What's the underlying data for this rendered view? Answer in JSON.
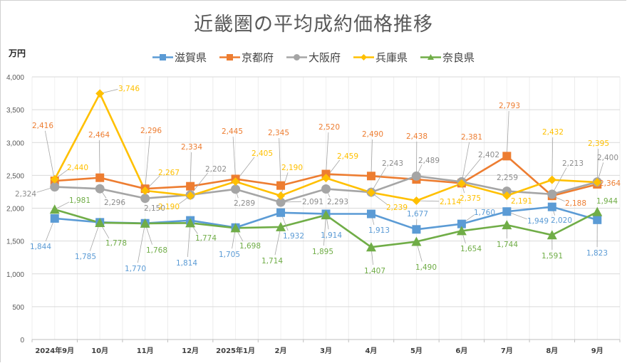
{
  "chart_data": {
    "type": "line",
    "title": "近畿圏の平均成約価格推移",
    "ylabel": "万円",
    "xlabel": "",
    "ylim": [
      0,
      4000
    ],
    "yticks": [
      "0",
      "500",
      "1,000",
      "1,500",
      "2,000",
      "2,500",
      "3,000",
      "3,500",
      "4,000"
    ],
    "ytick_values": [
      0,
      500,
      1000,
      1500,
      2000,
      2500,
      3000,
      3500,
      4000
    ],
    "grid": true,
    "legend_position": "top",
    "categories": [
      "2024年9月",
      "10月",
      "11月",
      "12月",
      "2025年1月",
      "2月",
      "3月",
      "4月",
      "5月",
      "6月",
      "7月",
      "8月",
      "9月"
    ],
    "series": [
      {
        "name": "滋賀県",
        "color": "#5B9BD5",
        "marker": "square",
        "values": [
          1844,
          1785,
          1770,
          1814,
          1705,
          1932,
          1914,
          1913,
          1677,
          1760,
          1949,
          2020,
          1823
        ],
        "labels": [
          "1,844",
          "1,785",
          "1,770",
          "1,814",
          "1,705",
          "1,932",
          "1,914",
          "1,913",
          "1,677",
          "1,760",
          "1,949",
          "2,020",
          "1,823"
        ]
      },
      {
        "name": "京都府",
        "color": "#ED7D31",
        "marker": "square",
        "values": [
          2416,
          2464,
          2296,
          2334,
          2445,
          2345,
          2520,
          2490,
          2438,
          2381,
          2793,
          2188,
          2364
        ],
        "labels": [
          "2,416",
          "2,464",
          "2,296",
          "2,334",
          "2,445",
          "2,345",
          "2,520",
          "2,490",
          "2,438",
          "2,381",
          "2,793",
          "2,188",
          "2,364"
        ]
      },
      {
        "name": "大阪府",
        "color": "#A5A5A5",
        "marker": "circle",
        "values": [
          2324,
          2296,
          2150,
          2202,
          2289,
          2091,
          2293,
          2243,
          2489,
          2402,
          2259,
          2213,
          2400
        ],
        "labels": [
          "2,324",
          "2,296",
          "2,150",
          "2,202",
          "2,289",
          "2,091",
          "2,293",
          "2,243",
          "2,489",
          "2,402",
          "2,259",
          "2,213",
          "2,400"
        ]
      },
      {
        "name": "兵庫県",
        "color": "#FFC000",
        "marker": "diamond",
        "values": [
          2440,
          3746,
          2267,
          2190,
          2405,
          2190,
          2459,
          2239,
          2114,
          2375,
          2191,
          2432,
          2395
        ],
        "labels": [
          "2,440",
          "3,746",
          "2,267",
          "2,190",
          "2,405",
          "2,190",
          "2,459",
          "2,239",
          "2,114",
          "2,375",
          "2,191",
          "2,432",
          "2,395"
        ]
      },
      {
        "name": "奈良県",
        "color": "#70AD47",
        "marker": "triangle",
        "values": [
          1981,
          1778,
          1768,
          1774,
          1698,
          1714,
          1895,
          1407,
          1490,
          1654,
          1744,
          1591,
          1944
        ],
        "labels": [
          "1,981",
          "1,778",
          "1,768",
          "1,774",
          "1,698",
          "1,714",
          "1,895",
          "1,407",
          "1,490",
          "1,654",
          "1,744",
          "1,591",
          "1,944"
        ]
      }
    ]
  }
}
